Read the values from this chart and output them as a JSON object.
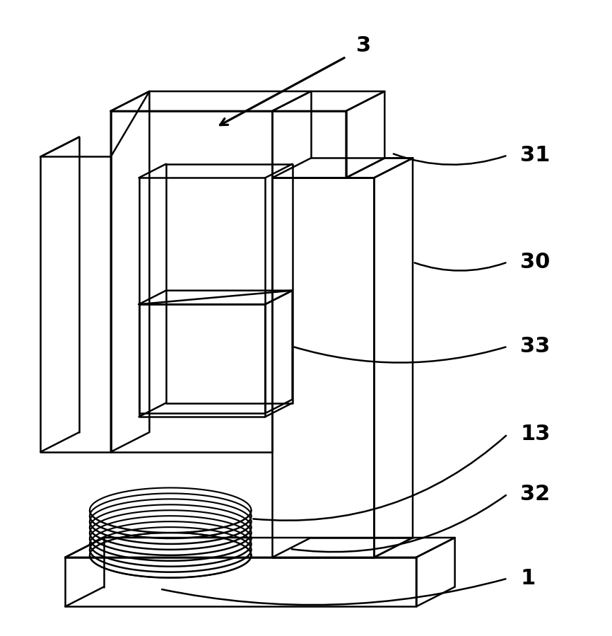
{
  "fig_width": 8.66,
  "fig_height": 8.99,
  "dpi": 100,
  "bg_color": "#ffffff",
  "line_color": "#000000",
  "line_width": 1.8,
  "label_fontsize": 22
}
